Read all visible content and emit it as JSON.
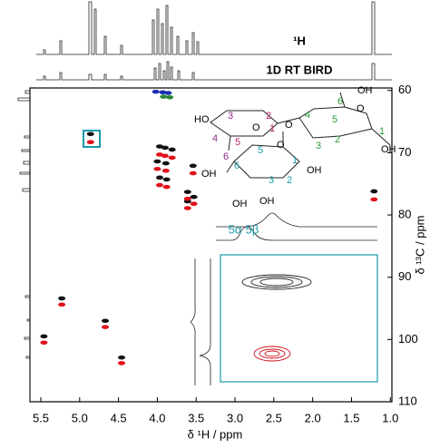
{
  "chart_data": {
    "type": "scatter",
    "x_label": "δ ¹H / ppm",
    "y_label": "δ ¹³C / ppm",
    "xlim": [
      5.64,
      0.98
    ],
    "ylim": [
      59.6,
      110
    ],
    "xticks": [
      5.5,
      {
        "value": 5,
        "label": "5.0"
      },
      4.5,
      {
        "value": 4,
        "label": "4.0"
      },
      3.5,
      {
        "value": 3,
        "label": "3.0"
      },
      2.5,
      {
        "value": 2,
        "label": "2.0"
      },
      1.5,
      {
        "value": 1,
        "label": "1.0"
      }
    ],
    "yticks": [
      60,
      70,
      80,
      90,
      100,
      110
    ],
    "y_axis_side": "right",
    "grid": false,
    "series": [
      {
        "color": "#111111",
        "x": [
          4.86,
          3.97,
          3.9,
          3.81,
          4.0,
          3.89,
          3.54,
          3.97,
          3.88,
          3.61,
          3.53,
          3.61,
          1.21,
          5.23,
          4.67,
          5.46,
          4.46
        ],
        "values": [
          67.0,
          69.0,
          69.2,
          69.5,
          71.4,
          71.7,
          72.1,
          74.0,
          74.3,
          76.3,
          77.1,
          77.8,
          76.2,
          93.4,
          97.0,
          99.5,
          102.9
        ]
      },
      {
        "color": "#e0101a",
        "x": [
          4.86,
          3.97,
          3.9,
          3.81,
          4.0,
          3.89,
          3.54,
          3.97,
          3.88,
          3.61,
          3.53,
          3.61,
          1.21,
          5.23,
          4.67,
          5.46,
          4.46
        ],
        "values": [
          68.3,
          70.3,
          70.5,
          70.8,
          72.6,
          72.9,
          73.3,
          75.2,
          75.5,
          77.4,
          78.2,
          78.9,
          77.5,
          94.4,
          98.0,
          100.5,
          103.8
        ]
      },
      {
        "color": "#1a2fb0",
        "x": [
          4.02,
          3.93,
          3.86
        ],
        "values": [
          60.2,
          60.3,
          60.4
        ]
      },
      {
        "color": "#2a8a3a",
        "x": [
          3.92,
          3.84
        ],
        "values": [
          61.0,
          61.1
        ]
      }
    ]
  },
  "traces": {
    "proton": "¹H",
    "bird": "1D RT BIRD"
  },
  "inset": {
    "labels": [
      "5α",
      "5β"
    ]
  },
  "structure": {
    "labels": [
      "3",
      "2",
      "1",
      "4",
      "5",
      "6",
      "O",
      "O",
      "HO",
      "OH",
      "6",
      "O",
      "4",
      "5",
      "1",
      "3",
      "2",
      "OH",
      "OH",
      "5",
      "O",
      "6",
      "1",
      "3",
      "2",
      "OH",
      "OH",
      "OH"
    ]
  }
}
